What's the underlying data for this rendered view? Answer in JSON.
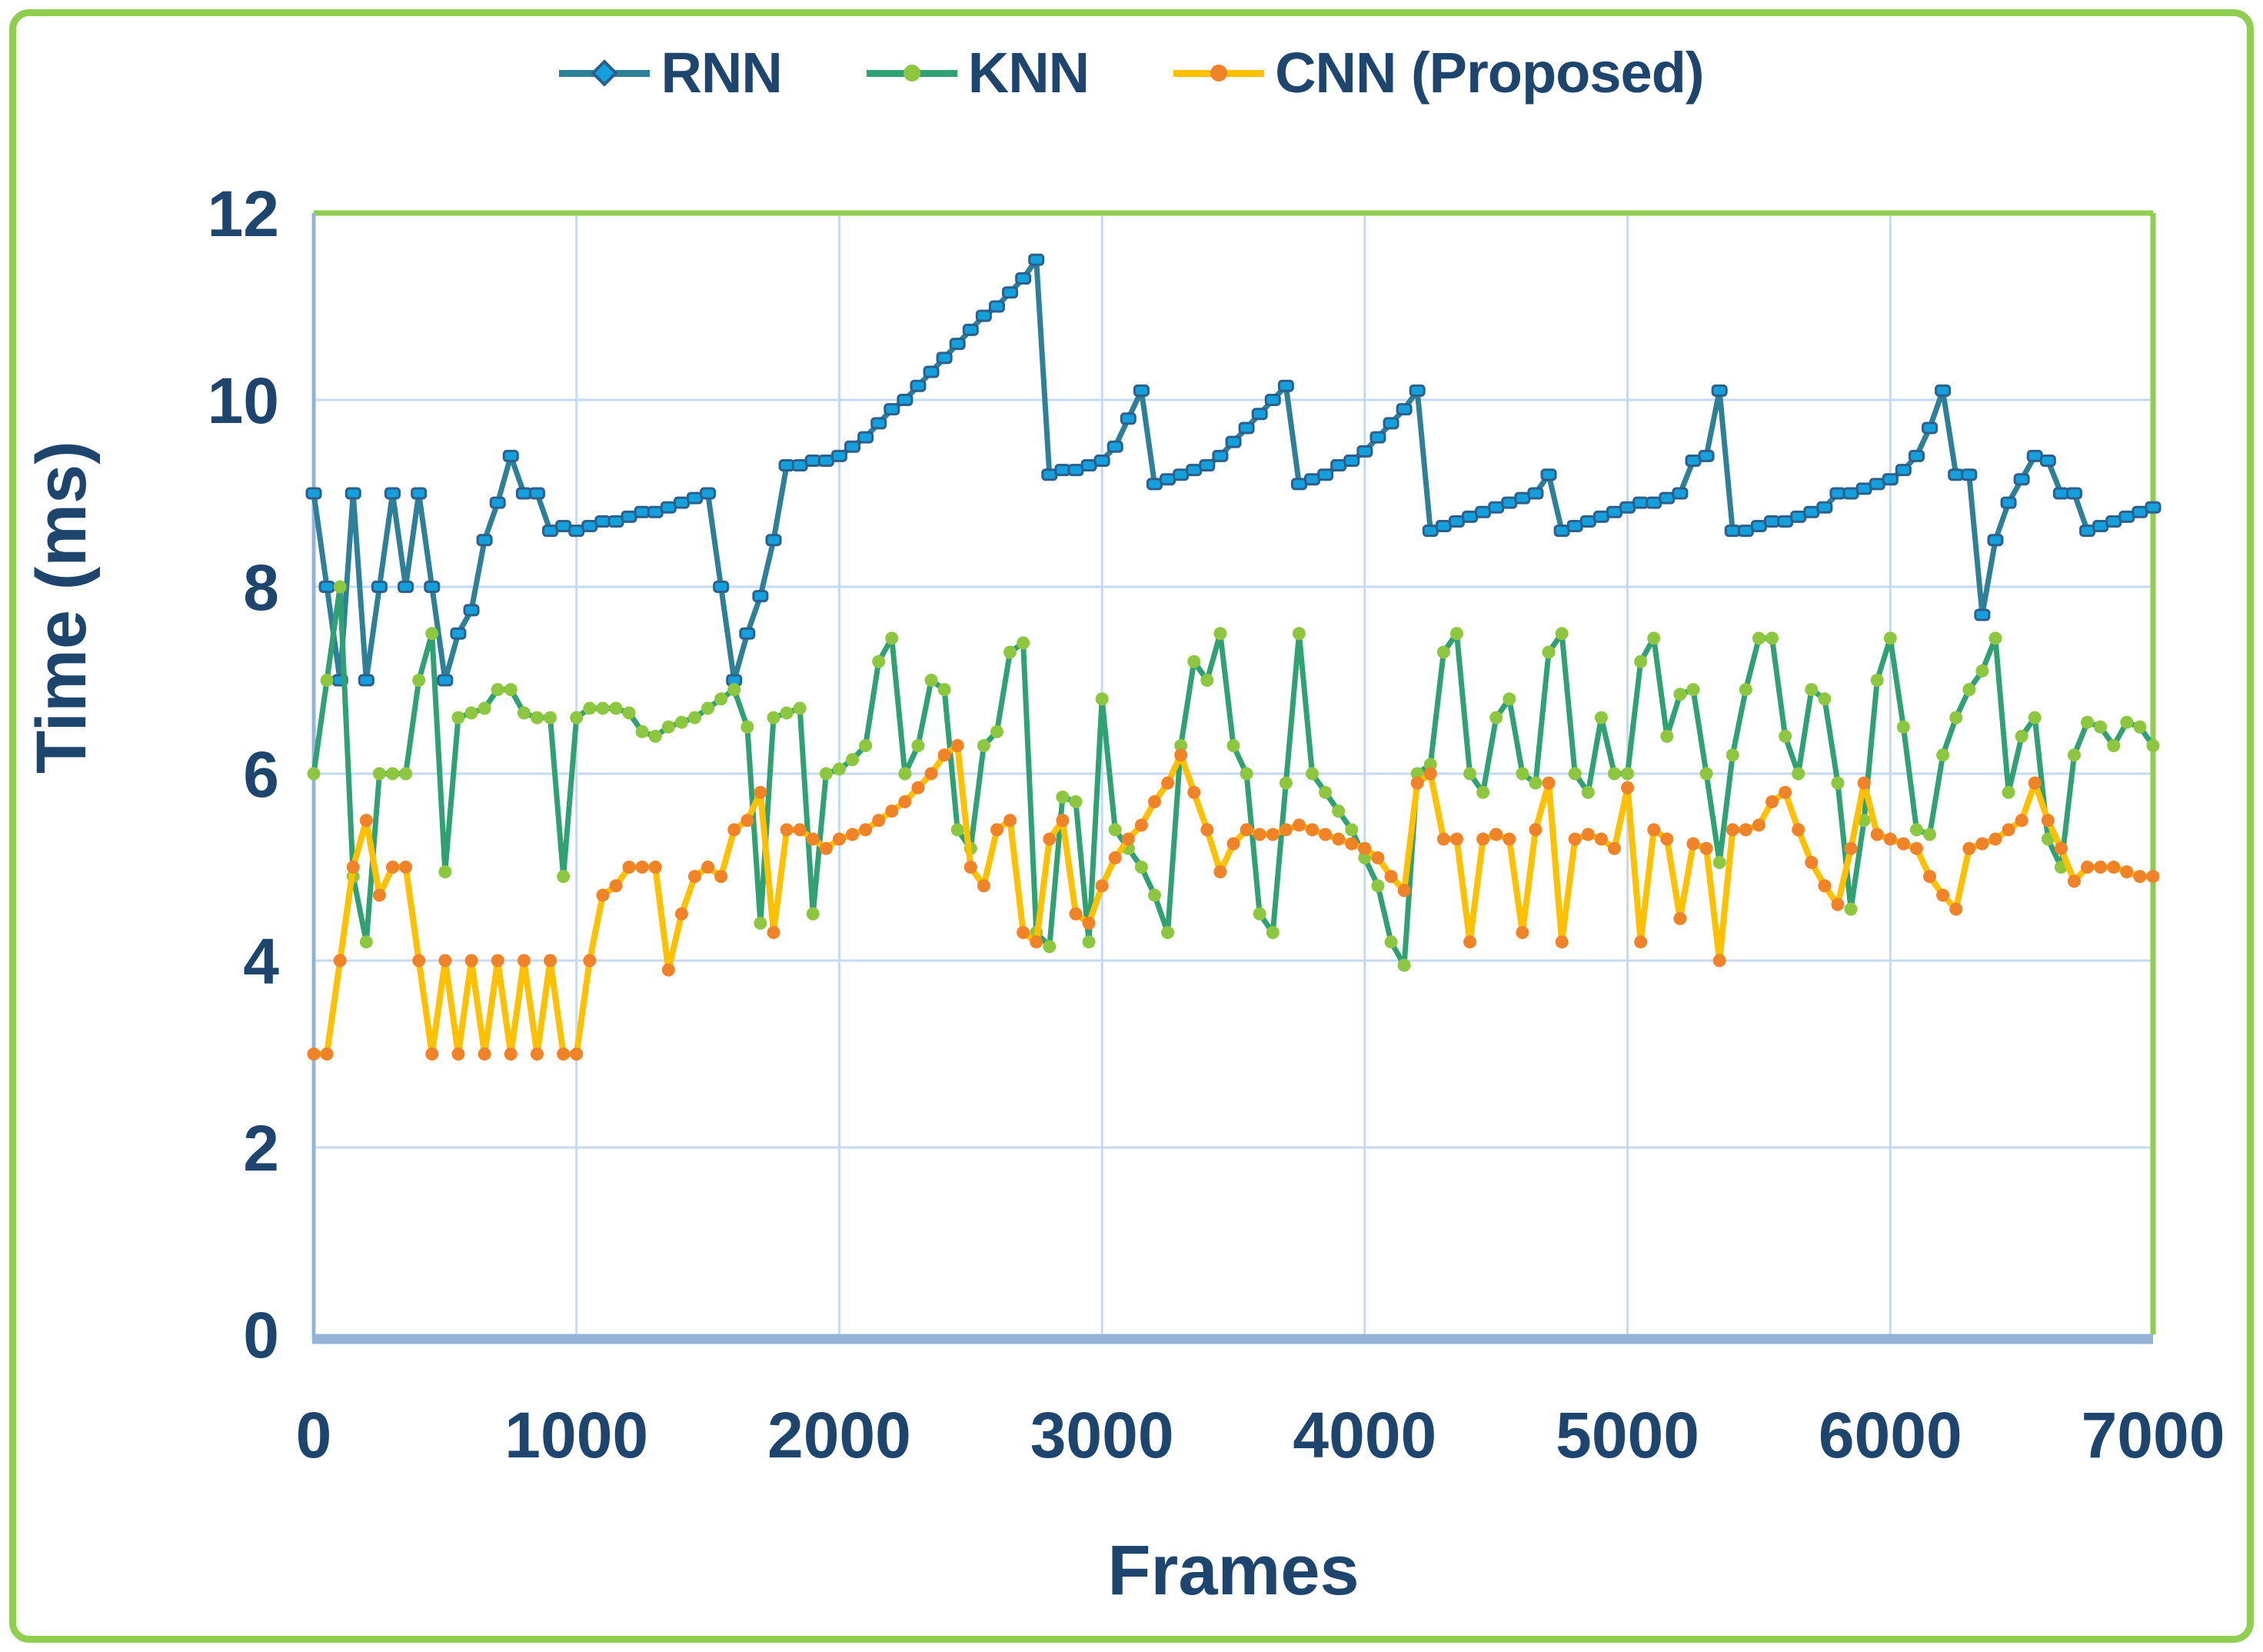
{
  "legend": {
    "items": [
      "RNN",
      "KNN",
      "CNN (Proposed)"
    ]
  },
  "colors": {
    "frame_border": "#8fce4e",
    "plot_top_right_border": "#8fce4e",
    "gridline": "#c5d9f1",
    "axis_line": "#95b3d7",
    "label_text": "#1e456e",
    "rnn_line": "#2e7f98",
    "rnn_marker": "#14a0dd",
    "knn_line": "#2fa173",
    "knn_marker": "#8dc63f",
    "cnn_line": "#ffc000",
    "cnn_marker": "#f08228"
  },
  "chart_data": {
    "type": "line",
    "title": "",
    "xlabel": "Frames",
    "ylabel": "Time (ms)",
    "xlim": [
      0,
      7000
    ],
    "ylim": [
      0,
      12
    ],
    "x_ticks": [
      0,
      1000,
      2000,
      3000,
      4000,
      5000,
      6000,
      7000
    ],
    "y_ticks": [
      0,
      2,
      4,
      6,
      8,
      10,
      12
    ],
    "grid": true,
    "legend_position": "top-center",
    "x_start": 0,
    "x_step": 50,
    "series": [
      {
        "name": "RNN",
        "line_color": "#2e7f98",
        "marker_color": "#14a0dd",
        "marker_edge": "#2b608d",
        "marker": "square",
        "values": [
          9.0,
          8.0,
          7.0,
          9.0,
          7.0,
          8.0,
          9.0,
          8.0,
          9.0,
          8.0,
          7.0,
          7.5,
          7.75,
          8.5,
          8.9,
          9.4,
          9.0,
          9.0,
          8.6,
          8.65,
          8.6,
          8.65,
          8.7,
          8.7,
          8.75,
          8.8,
          8.8,
          8.85,
          8.9,
          8.95,
          9.0,
          8.0,
          7.0,
          7.5,
          7.9,
          8.5,
          9.3,
          9.3,
          9.35,
          9.35,
          9.4,
          9.5,
          9.6,
          9.75,
          9.9,
          10.0,
          10.15,
          10.3,
          10.45,
          10.6,
          10.75,
          10.9,
          11.0,
          11.15,
          11.3,
          11.5,
          9.2,
          9.25,
          9.25,
          9.3,
          9.35,
          9.5,
          9.8,
          10.1,
          9.1,
          9.15,
          9.2,
          9.25,
          9.3,
          9.4,
          9.55,
          9.7,
          9.85,
          10.0,
          10.15,
          9.1,
          9.15,
          9.2,
          9.3,
          9.35,
          9.45,
          9.6,
          9.75,
          9.9,
          10.1,
          8.6,
          8.65,
          8.7,
          8.75,
          8.8,
          8.85,
          8.9,
          8.95,
          9.0,
          9.2,
          8.6,
          8.65,
          8.7,
          8.75,
          8.8,
          8.85,
          8.9,
          8.9,
          8.95,
          9.0,
          9.35,
          9.4,
          10.1,
          8.6,
          8.6,
          8.65,
          8.7,
          8.7,
          8.75,
          8.8,
          8.85,
          9.0,
          9.0,
          9.05,
          9.1,
          9.15,
          9.25,
          9.4,
          9.7,
          10.1,
          9.2,
          9.2,
          7.7,
          8.5,
          8.9,
          9.15,
          9.4,
          9.35,
          9.0,
          9.0,
          8.6,
          8.65,
          8.7,
          8.75,
          8.8,
          8.85
        ]
      },
      {
        "name": "KNN",
        "line_color": "#2fa173",
        "marker_color": "#8dc63f",
        "marker_edge": "#8dc63f",
        "marker": "circle",
        "values": [
          6.0,
          7.0,
          8.0,
          4.9,
          4.2,
          6.0,
          6.0,
          6.0,
          7.0,
          7.5,
          4.95,
          6.6,
          6.65,
          6.7,
          6.9,
          6.9,
          6.65,
          6.6,
          6.6,
          4.9,
          6.6,
          6.7,
          6.7,
          6.7,
          6.65,
          6.45,
          6.4,
          6.5,
          6.55,
          6.6,
          6.7,
          6.8,
          6.9,
          6.5,
          4.4,
          6.6,
          6.65,
          6.7,
          4.5,
          6.0,
          6.05,
          6.15,
          6.3,
          7.2,
          7.45,
          6.0,
          6.3,
          7.0,
          6.9,
          5.4,
          5.2,
          6.3,
          6.45,
          7.3,
          7.4,
          4.3,
          4.15,
          5.75,
          5.7,
          4.2,
          6.8,
          5.4,
          5.2,
          5.0,
          4.7,
          4.3,
          6.3,
          7.2,
          7.0,
          7.5,
          6.3,
          6.0,
          4.5,
          4.3,
          5.9,
          7.5,
          6.0,
          5.8,
          5.6,
          5.4,
          5.1,
          4.8,
          4.2,
          3.95,
          6.0,
          6.1,
          7.3,
          7.5,
          6.0,
          5.8,
          6.6,
          6.8,
          6.0,
          5.9,
          7.3,
          7.5,
          6.0,
          5.8,
          6.6,
          6.0,
          6.0,
          7.2,
          7.45,
          6.4,
          6.85,
          6.9,
          6.0,
          5.05,
          6.2,
          6.9,
          7.45,
          7.45,
          6.4,
          6.0,
          6.9,
          6.8,
          5.9,
          4.55,
          5.5,
          7.0,
          7.45,
          6.5,
          5.4,
          5.35,
          6.2,
          6.6,
          6.9,
          7.1,
          7.45,
          5.8,
          6.4,
          6.6,
          5.3,
          5.0,
          6.2,
          6.55,
          6.5,
          6.3,
          6.55,
          6.5,
          6.3
        ]
      },
      {
        "name": "CNN (Proposed)",
        "line_color": "#ffc000",
        "marker_color": "#f08228",
        "marker_edge": "#f08228",
        "marker": "circle",
        "values": [
          3.0,
          3.0,
          4.0,
          5.0,
          5.5,
          4.7,
          5.0,
          5.0,
          4.0,
          3.0,
          4.0,
          3.0,
          4.0,
          3.0,
          4.0,
          3.0,
          4.0,
          3.0,
          4.0,
          3.0,
          3.0,
          4.0,
          4.7,
          4.8,
          5.0,
          5.0,
          5.0,
          3.9,
          4.5,
          4.9,
          5.0,
          4.9,
          5.4,
          5.5,
          5.8,
          4.3,
          5.4,
          5.4,
          5.3,
          5.2,
          5.3,
          5.35,
          5.4,
          5.5,
          5.6,
          5.7,
          5.85,
          6.0,
          6.2,
          6.3,
          5.0,
          4.8,
          5.4,
          5.5,
          4.3,
          4.2,
          5.3,
          5.5,
          4.5,
          4.4,
          4.8,
          5.1,
          5.3,
          5.45,
          5.7,
          5.9,
          6.2,
          5.8,
          5.4,
          4.95,
          5.25,
          5.4,
          5.35,
          5.35,
          5.4,
          5.45,
          5.4,
          5.35,
          5.3,
          5.25,
          5.2,
          5.1,
          4.9,
          4.75,
          5.9,
          6.0,
          5.3,
          5.3,
          4.2,
          5.3,
          5.35,
          5.3,
          4.3,
          5.4,
          5.9,
          4.2,
          5.3,
          5.35,
          5.3,
          5.2,
          5.85,
          4.2,
          5.4,
          5.3,
          4.45,
          5.25,
          5.2,
          4.0,
          5.4,
          5.4,
          5.45,
          5.7,
          5.8,
          5.4,
          5.05,
          4.8,
          4.6,
          5.2,
          5.9,
          5.35,
          5.3,
          5.25,
          5.2,
          4.9,
          4.7,
          4.55,
          5.2,
          5.25,
          5.3,
          5.4,
          5.5,
          5.9,
          5.5,
          5.2,
          4.85,
          5.0,
          5.0,
          5.0,
          4.95,
          4.9,
          4.9
        ]
      }
    ]
  }
}
